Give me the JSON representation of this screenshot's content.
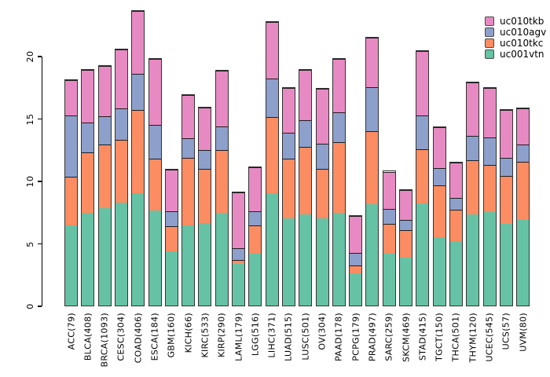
{
  "chart": {
    "background": "#ffffff",
    "axis_color": "#000000",
    "bar_border_color": "#333333",
    "segment_divider_color": "#1f1f1f"
  },
  "chart_data": {
    "type": "bar",
    "stacked": true,
    "title": "",
    "xlabel": "",
    "ylabel": "",
    "ylim": [
      0,
      24
    ],
    "grid": false,
    "legend_position": "top-right",
    "y_ticks": [
      0,
      5,
      10,
      15,
      20
    ],
    "categories": [
      "ACC(79)",
      "BLCA(408)",
      "BRCA(1093)",
      "CESC(304)",
      "COAD(406)",
      "ESCA(184)",
      "GBM(160)",
      "KICH(66)",
      "KIRC(533)",
      "KIRP(290)",
      "LAML(179)",
      "LGG(516)",
      "LIHC(371)",
      "LUAD(515)",
      "LUSC(501)",
      "OV(304)",
      "PAAD(178)",
      "PCPG(179)",
      "PRAD(497)",
      "SARC(259)",
      "SKCM(469)",
      "STAD(415)",
      "TGCT(150)",
      "THCA(501)",
      "THYM(120)",
      "UCEC(545)",
      "UCS(57)",
      "UVM(80)"
    ],
    "series": [
      {
        "name": "uc001vtn",
        "color": "#66c2a5",
        "values": [
          6.5,
          7.55,
          7.9,
          8.35,
          9.1,
          7.75,
          4.45,
          6.55,
          6.75,
          7.55,
          3.45,
          4.3,
          9.1,
          7.1,
          7.45,
          7.1,
          7.55,
          2.7,
          8.25,
          4.3,
          4.0,
          8.3,
          5.6,
          5.3,
          7.45,
          7.6,
          6.65,
          7.0
        ]
      },
      {
        "name": "uc010tkc",
        "color": "#fc8d62",
        "values": [
          3.9,
          4.85,
          5.15,
          5.05,
          6.7,
          4.15,
          2.05,
          5.45,
          4.35,
          5.05,
          0.25,
          2.25,
          6.15,
          4.8,
          5.4,
          4.0,
          5.65,
          0.6,
          5.85,
          2.4,
          2.2,
          4.35,
          4.15,
          2.5,
          4.35,
          3.8,
          3.9,
          4.7
        ]
      },
      {
        "name": "uc010agv",
        "color": "#8da0cb",
        "values": [
          4.95,
          2.4,
          2.25,
          2.5,
          2.85,
          2.65,
          1.15,
          1.5,
          1.5,
          1.85,
          0.9,
          1.1,
          3.05,
          2.05,
          2.1,
          1.95,
          2.4,
          0.95,
          3.5,
          1.15,
          0.75,
          2.65,
          1.35,
          0.95,
          1.9,
          2.2,
          1.4,
          1.35
        ]
      },
      {
        "name": "uc010tkb",
        "color": "#e78ac3",
        "values": [
          2.85,
          4.2,
          4.0,
          4.75,
          5.05,
          5.35,
          3.35,
          3.5,
          3.4,
          4.45,
          4.6,
          3.55,
          4.5,
          3.6,
          4.05,
          4.45,
          4.25,
          3.05,
          4.0,
          3.0,
          2.45,
          5.2,
          3.3,
          2.85,
          4.3,
          3.95,
          3.85,
          2.85
        ]
      }
    ],
    "legend": [
      {
        "label": "uc010tkb",
        "color": "#e78ac3"
      },
      {
        "label": "uc010agv",
        "color": "#8da0cb"
      },
      {
        "label": "uc010tkc",
        "color": "#fc8d62"
      },
      {
        "label": "uc001vtn",
        "color": "#66c2a5"
      }
    ]
  }
}
